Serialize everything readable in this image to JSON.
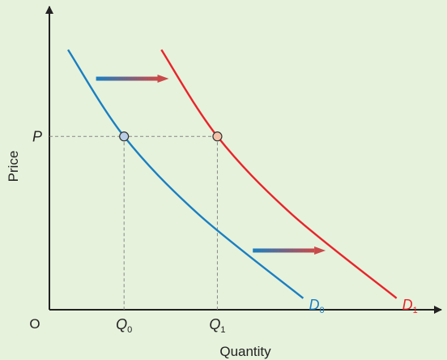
{
  "chart_data": {
    "type": "line",
    "title": "",
    "xlabel": "Quantity",
    "ylabel": "Price",
    "origin_label": "O",
    "grid": false,
    "series": [
      {
        "name_main": "D",
        "name_sub": "0",
        "color": "#1a7fc1",
        "points": [
          [
            0.5,
            9.0
          ],
          [
            2.0,
            6.0
          ],
          [
            4.0,
            3.3
          ],
          [
            6.8,
            0.4
          ]
        ]
      },
      {
        "name_main": "D",
        "name_sub": "1",
        "color": "#e8242b",
        "points": [
          [
            3.0,
            9.0
          ],
          [
            4.5,
            6.0
          ],
          [
            6.5,
            3.3
          ],
          [
            9.3,
            0.4
          ]
        ]
      }
    ],
    "reference": {
      "price_label": "P",
      "price_value": 6.0,
      "q0_main": "Q",
      "q0_sub": "0",
      "q0_value": 2.0,
      "q1_main": "Q",
      "q1_sub": "1",
      "q1_value": 4.5
    },
    "marker_colors": {
      "d0": "#b9cde6",
      "d1": "#f4c2a8"
    },
    "shift_arrows": [
      {
        "from": [
          1.25,
          8.0
        ],
        "to": [
          3.2,
          8.0
        ]
      },
      {
        "from": [
          5.45,
          2.05
        ],
        "to": [
          7.4,
          2.05
        ]
      }
    ],
    "arrow_gradient": [
      "#1a7fc1",
      "#c84a4a"
    ],
    "xlim": [
      0,
      10.5
    ],
    "ylim": [
      0,
      10.5
    ]
  }
}
